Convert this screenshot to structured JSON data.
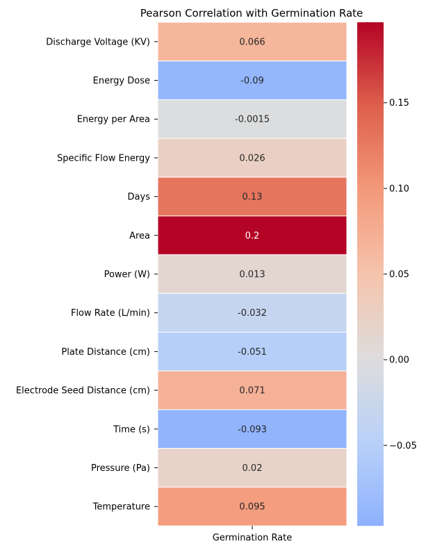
{
  "chart_data": {
    "type": "heatmap",
    "title": "Pearson Correlation with Germination Rate",
    "xlabel": "",
    "ylabel": "",
    "columns": [
      "Germination Rate"
    ],
    "rows": [
      {
        "label": "Discharge Voltage (KV)",
        "value": 0.066,
        "text": "0.066"
      },
      {
        "label": "Energy Dose",
        "value": -0.09,
        "text": "-0.09"
      },
      {
        "label": "Energy per Area",
        "value": -0.0015,
        "text": "-0.0015"
      },
      {
        "label": "Specific Flow Energy",
        "value": 0.026,
        "text": "0.026"
      },
      {
        "label": "Days",
        "value": 0.13,
        "text": "0.13"
      },
      {
        "label": "Area",
        "value": 0.2,
        "text": "0.2"
      },
      {
        "label": "Power (W)",
        "value": 0.013,
        "text": "0.013"
      },
      {
        "label": "Flow Rate (L/min)",
        "value": -0.032,
        "text": "-0.032"
      },
      {
        "label": "Plate Distance (cm)",
        "value": -0.051,
        "text": "-0.051"
      },
      {
        "label": "Electrode Seed Distance (cm)",
        "value": 0.071,
        "text": "0.071"
      },
      {
        "label": "Time (s)",
        "value": -0.093,
        "text": "-0.093"
      },
      {
        "label": "Pressure (Pa)",
        "value": 0.02,
        "text": "0.02"
      },
      {
        "label": "Temperature",
        "value": 0.095,
        "text": "0.095"
      }
    ],
    "colormap": "coolwarm",
    "center": 0,
    "vmin": -0.097,
    "vmax": 0.197,
    "colorbar_ticks": [
      {
        "value": 0.15,
        "label": "0.15"
      },
      {
        "value": 0.1,
        "label": "0.10"
      },
      {
        "value": 0.05,
        "label": "0.05"
      },
      {
        "value": 0.0,
        "label": "0.00"
      },
      {
        "value": -0.05,
        "label": "−0.05"
      }
    ],
    "grid": true,
    "cell_border_color": "#ffffff"
  }
}
